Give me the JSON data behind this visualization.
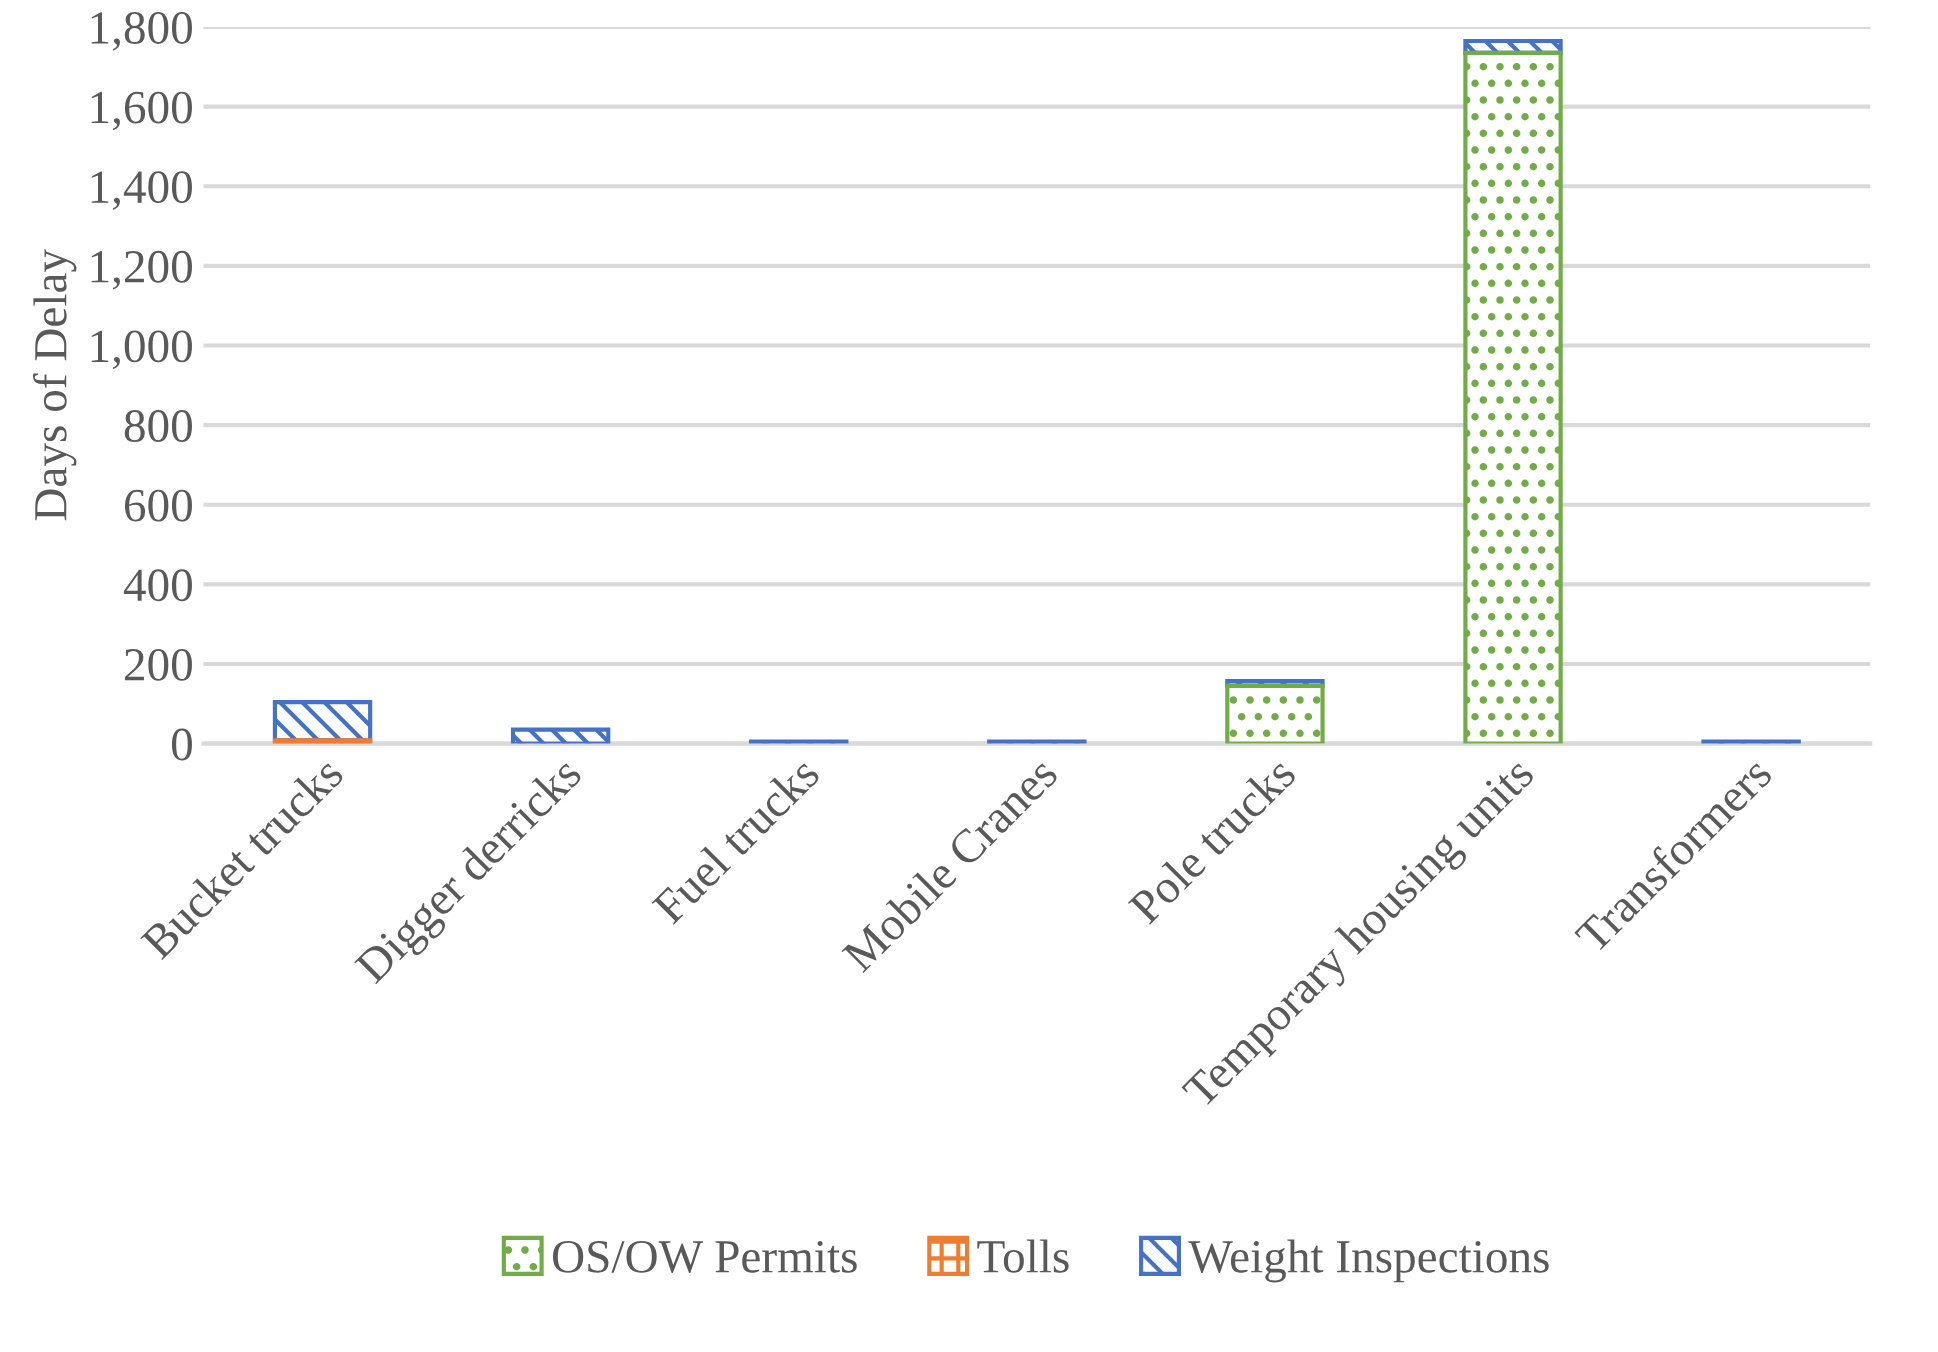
{
  "chart_data": {
    "type": "bar",
    "stacked": true,
    "ylabel": "Days of Delay",
    "categories": [
      "Bucket trucks",
      "Digger derricks",
      "Fuel trucks",
      "Mobile Cranes",
      "Pole trucks",
      "Temporary housing units",
      "Transformers"
    ],
    "series": [
      {
        "name": "OS/OW Permits",
        "color": "#70ad47",
        "values": [
          0,
          0,
          0,
          0,
          145,
          1735,
          0
        ]
      },
      {
        "name": "Tolls",
        "color": "#ed7d31",
        "values": [
          8,
          0,
          0,
          0,
          0,
          0,
          0
        ]
      },
      {
        "name": "Weight Inspections",
        "color": "#4472c4",
        "values": [
          96,
          35,
          5,
          5,
          12,
          30,
          5
        ]
      }
    ],
    "ylim": [
      0,
      1800
    ],
    "yticks": [
      {
        "value": 0,
        "label": "0"
      },
      {
        "value": 200,
        "label": "200"
      },
      {
        "value": 400,
        "label": "400"
      },
      {
        "value": 600,
        "label": "600"
      },
      {
        "value": 800,
        "label": "800"
      },
      {
        "value": 1000,
        "label": "1,000"
      },
      {
        "value": 1200,
        "label": "1,200"
      },
      {
        "value": 1400,
        "label": "1,400"
      },
      {
        "value": 1600,
        "label": "1,600"
      },
      {
        "value": 1800,
        "label": "1,800"
      }
    ],
    "grid": "y",
    "legend": "bottom"
  }
}
